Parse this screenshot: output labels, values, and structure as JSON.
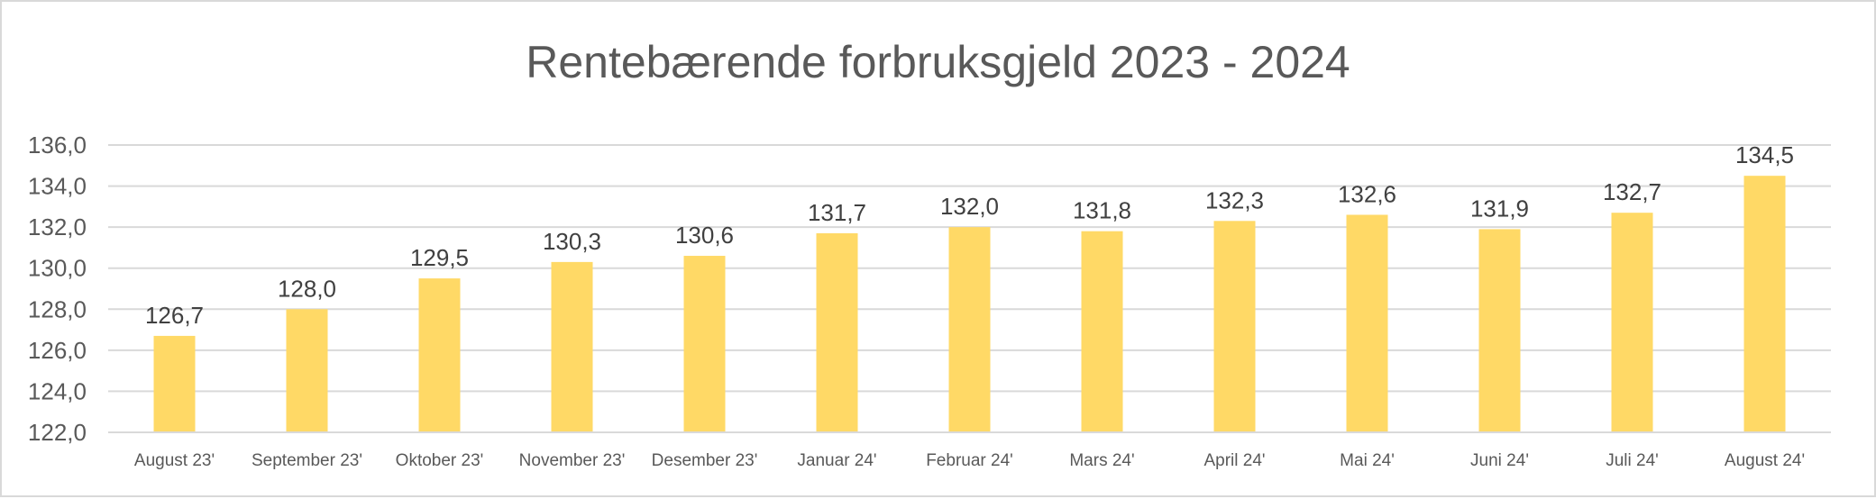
{
  "chart_data": {
    "type": "bar",
    "title": "Rentebærende forbruksgjeld 2023 - 2024",
    "xlabel": "",
    "ylabel": "",
    "ylim": [
      122,
      136
    ],
    "yticks": [
      "122,0",
      "124,0",
      "126,0",
      "128,0",
      "130,0",
      "132,0",
      "134,0",
      "136,0"
    ],
    "grid": true,
    "categories": [
      "August 23'",
      "September 23'",
      "Oktober 23'",
      "November 23'",
      "Desember 23'",
      "Januar 24'",
      "Februar 24'",
      "Mars 24'",
      "April 24'",
      "Mai 24'",
      "Juni 24'",
      "Juli 24'",
      "August 24'"
    ],
    "values": [
      126.7,
      128.0,
      129.5,
      130.3,
      130.6,
      131.7,
      132.0,
      131.8,
      132.3,
      132.6,
      131.9,
      132.7,
      134.5
    ],
    "data_labels": [
      "126,7",
      "128,0",
      "129,5",
      "130,3",
      "130,6",
      "131,7",
      "132,0",
      "131,8",
      "132,3",
      "132,6",
      "131,9",
      "132,7",
      "134,5"
    ],
    "bar_color": "#ffd966"
  }
}
